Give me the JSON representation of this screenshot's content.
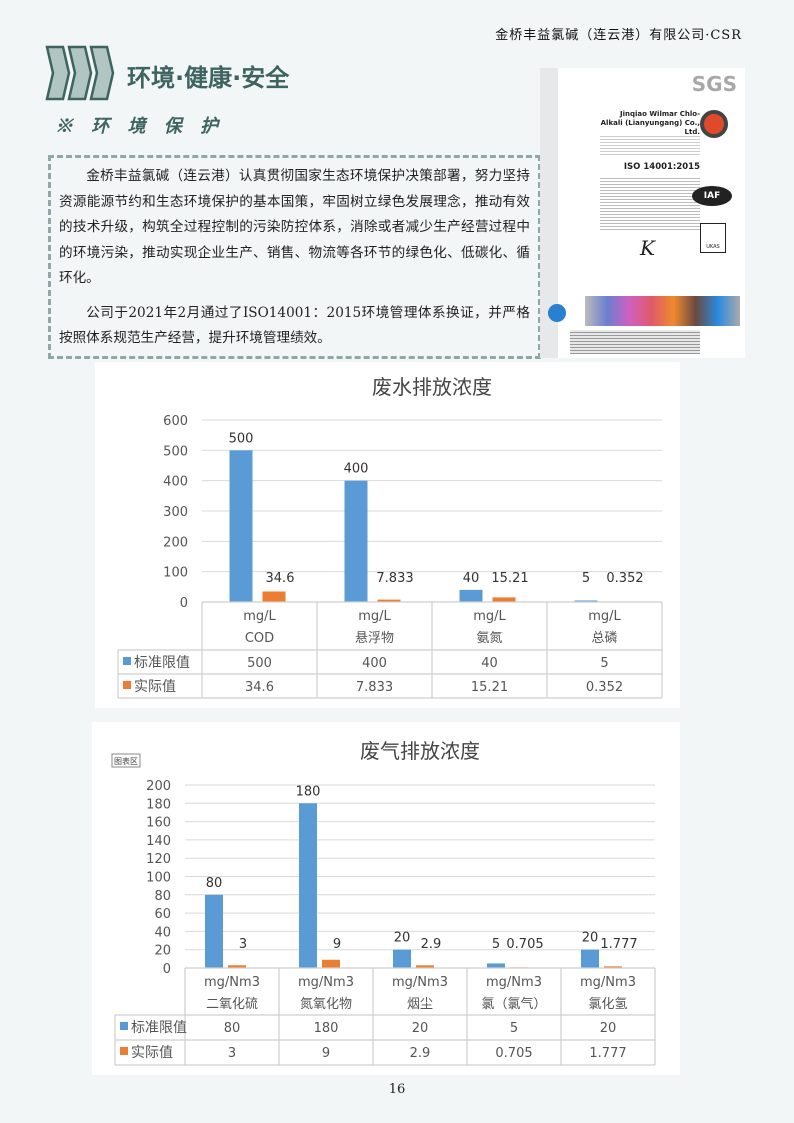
{
  "header": {
    "company_csr": "金桥丰益氯碱（连云港）有限公司·CSR"
  },
  "section": {
    "title": "环境·健康·安全",
    "subtitle": "※ 环 境 保 护",
    "accent_color": "#3d6460"
  },
  "intro": {
    "paragraphs": [
      "金桥丰益氯碱（连云港）认真贯彻国家生态环境保护决策部署，努力坚持资源能源节约和生态环境保护的基本国策，牢固树立绿色发展理念，推动有效的技术升级，构筑全过程控制的污染防控体系，消除或者减少生产经营过程中的环境污染，推动实现企业生产、销售、物流等各环节的绿色化、低碳化、循环化。",
      "公司于2021年2月通过了ISO14001：2015环境管理体系换证，并严格按照体系规范生产经营，提升环境管理绩效。"
    ]
  },
  "certificate": {
    "brand": "SGS",
    "company": "Jinqiao Wilmar Chlo-Alkali (Lianyungang) Co., Ltd.",
    "standard": "ISO 14001:2015",
    "badges": [
      "IAF",
      "UKAS"
    ]
  },
  "chart_data": [
    {
      "type": "bar",
      "title": "废水排放浓度",
      "units": [
        "mg/L",
        "mg/L",
        "mg/L",
        "mg/L"
      ],
      "categories": [
        "COD",
        "悬浮物",
        "氨氮",
        "总磷"
      ],
      "series": [
        {
          "name": "标准限值",
          "color": "#5b9bd5",
          "values": [
            500,
            400,
            40,
            5
          ]
        },
        {
          "name": "实际值",
          "color": "#ed7d31",
          "values": [
            34.6,
            7.833,
            15.21,
            0.352
          ]
        }
      ],
      "value_labels": [
        [
          "500",
          "400",
          "40",
          "5"
        ],
        [
          "34.6",
          "7.833",
          "15.21",
          "0.352"
        ]
      ],
      "ylim": [
        0,
        600
      ],
      "yticks": [
        0,
        100,
        200,
        300,
        400,
        500,
        600
      ],
      "grid": true,
      "legend": "data-table"
    },
    {
      "type": "bar",
      "title": "废气排放浓度",
      "tag": "图表区",
      "units": [
        "mg/Nm3",
        "mg/Nm3",
        "mg/Nm3",
        "mg/Nm3",
        "mg/Nm3"
      ],
      "categories": [
        "二氧化硫",
        "氮氧化物",
        "烟尘",
        "氯（氯气）",
        "氯化氢"
      ],
      "series": [
        {
          "name": "标准限值",
          "color": "#5b9bd5",
          "values": [
            80,
            180,
            20,
            5,
            20
          ]
        },
        {
          "name": "实际值",
          "color": "#ed7d31",
          "values": [
            3,
            9,
            2.9,
            0.705,
            1.777
          ]
        }
      ],
      "value_labels": [
        [
          "80",
          "180",
          "20",
          "5",
          "20"
        ],
        [
          "3",
          "9",
          "2.9",
          "0.705",
          "1.777"
        ]
      ],
      "ylim": [
        0,
        200
      ],
      "yticks": [
        0,
        20,
        40,
        60,
        80,
        100,
        120,
        140,
        160,
        180,
        200
      ],
      "grid": true,
      "legend": "data-table"
    }
  ],
  "page_number": "16"
}
